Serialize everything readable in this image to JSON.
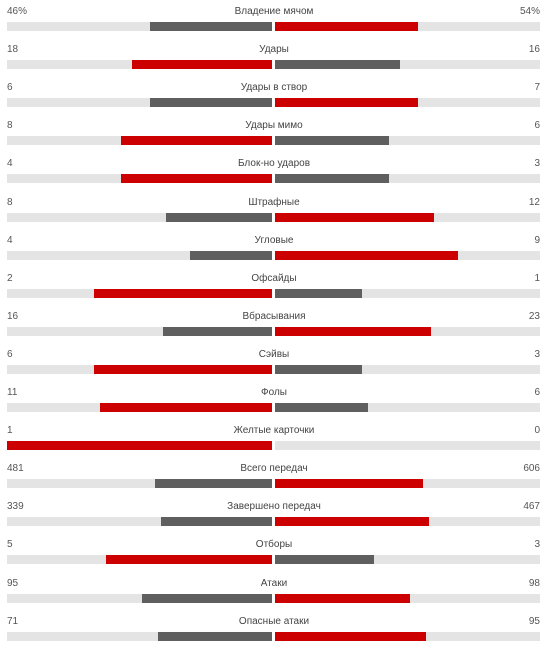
{
  "colors": {
    "leader": "#cc0000",
    "trailer": "#5f5f5f",
    "track": "#e4e4e4"
  },
  "stats": [
    {
      "label": "Владение мячом",
      "home": "46%",
      "away": "54%",
      "home_share": 0.46,
      "away_share": 0.54
    },
    {
      "label": "Удары",
      "home": "18",
      "away": "16",
      "home_share": 0.53,
      "away_share": 0.47
    },
    {
      "label": "Удары в створ",
      "home": "6",
      "away": "7",
      "home_share": 0.46,
      "away_share": 0.54
    },
    {
      "label": "Удары мимо",
      "home": "8",
      "away": "6",
      "home_share": 0.57,
      "away_share": 0.43
    },
    {
      "label": "Блок-но ударов",
      "home": "4",
      "away": "3",
      "home_share": 0.57,
      "away_share": 0.43
    },
    {
      "label": "Штрафные",
      "home": "8",
      "away": "12",
      "home_share": 0.4,
      "away_share": 0.6
    },
    {
      "label": "Угловые",
      "home": "4",
      "away": "9",
      "home_share": 0.31,
      "away_share": 0.69
    },
    {
      "label": "Офсайды",
      "home": "2",
      "away": "1",
      "home_share": 0.67,
      "away_share": 0.33
    },
    {
      "label": "Вбрасывания",
      "home": "16",
      "away": "23",
      "home_share": 0.41,
      "away_share": 0.59
    },
    {
      "label": "Сэйвы",
      "home": "6",
      "away": "3",
      "home_share": 0.67,
      "away_share": 0.33
    },
    {
      "label": "Фолы",
      "home": "11",
      "away": "6",
      "home_share": 0.65,
      "away_share": 0.35
    },
    {
      "label": "Желтые карточки",
      "home": "1",
      "away": "0",
      "home_share": 1.0,
      "away_share": 0.0
    },
    {
      "label": "Всего передач",
      "home": "481",
      "away": "606",
      "home_share": 0.44,
      "away_share": 0.56
    },
    {
      "label": "Завершено передач",
      "home": "339",
      "away": "467",
      "home_share": 0.42,
      "away_share": 0.58
    },
    {
      "label": "Отборы",
      "home": "5",
      "away": "3",
      "home_share": 0.625,
      "away_share": 0.375
    },
    {
      "label": "Атаки",
      "home": "95",
      "away": "98",
      "home_share": 0.49,
      "away_share": 0.51
    },
    {
      "label": "Опасные атаки",
      "home": "71",
      "away": "95",
      "home_share": 0.43,
      "away_share": 0.57
    }
  ]
}
